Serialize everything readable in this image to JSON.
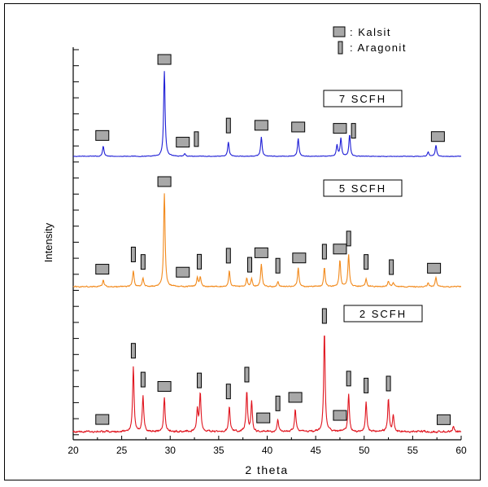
{
  "colors": {
    "7scfh": "#1f1fd6",
    "5scfh": "#f28a1c",
    "2scfh": "#e0141e",
    "marker_fill": "#a8a8a8",
    "axis": "#000000"
  },
  "chart_data": {
    "type": "line",
    "title": "",
    "xlabel": "2 theta",
    "ylabel": "Intensity",
    "xlim": [
      20,
      60
    ],
    "x_ticks": [
      "20",
      "25",
      "30",
      "35",
      "40",
      "45",
      "50",
      "55",
      "60"
    ],
    "legend": {
      "placement": "top-right",
      "entries": [
        {
          "symbol": "square",
          "label": ": Kalsit"
        },
        {
          "symbol": "bar",
          "label": ": Aragonit"
        }
      ]
    },
    "series": [
      {
        "name": "7 SCFH",
        "color": "#1f1fd6",
        "peaks": [
          {
            "x": 23.1,
            "h": 0.12
          },
          {
            "x": 29.4,
            "h": 1.0
          },
          {
            "x": 31.5,
            "h": 0.03
          },
          {
            "x": 36.0,
            "h": 0.17
          },
          {
            "x": 39.4,
            "h": 0.23
          },
          {
            "x": 43.2,
            "h": 0.21
          },
          {
            "x": 47.2,
            "h": 0.13
          },
          {
            "x": 47.6,
            "h": 0.21
          },
          {
            "x": 48.5,
            "h": 0.25
          },
          {
            "x": 56.6,
            "h": 0.05
          },
          {
            "x": 57.4,
            "h": 0.13
          }
        ],
        "markers": [
          {
            "type": "kalsit",
            "x": 23.0
          },
          {
            "type": "kalsit",
            "x": 29.4
          },
          {
            "type": "kalsit",
            "x": 31.3
          },
          {
            "type": "aragonit",
            "x": 32.7
          },
          {
            "type": "aragonit",
            "x": 36.0
          },
          {
            "type": "kalsit",
            "x": 39.4
          },
          {
            "type": "kalsit",
            "x": 43.2
          },
          {
            "type": "kalsit",
            "x": 47.5
          },
          {
            "type": "aragonit",
            "x": 48.9
          },
          {
            "type": "kalsit",
            "x": 57.6
          }
        ]
      },
      {
        "name": "5 SCFH",
        "color": "#f28a1c",
        "peaks": [
          {
            "x": 23.1,
            "h": 0.07
          },
          {
            "x": 26.2,
            "h": 0.17
          },
          {
            "x": 27.2,
            "h": 0.09
          },
          {
            "x": 29.4,
            "h": 1.0
          },
          {
            "x": 32.8,
            "h": 0.09
          },
          {
            "x": 33.1,
            "h": 0.1
          },
          {
            "x": 36.1,
            "h": 0.17
          },
          {
            "x": 37.9,
            "h": 0.09
          },
          {
            "x": 38.4,
            "h": 0.08
          },
          {
            "x": 39.4,
            "h": 0.24
          },
          {
            "x": 41.1,
            "h": 0.05
          },
          {
            "x": 43.2,
            "h": 0.2
          },
          {
            "x": 45.9,
            "h": 0.2
          },
          {
            "x": 47.5,
            "h": 0.28
          },
          {
            "x": 48.4,
            "h": 0.34
          },
          {
            "x": 50.2,
            "h": 0.09
          },
          {
            "x": 52.5,
            "h": 0.06
          },
          {
            "x": 53.0,
            "h": 0.04
          },
          {
            "x": 56.6,
            "h": 0.04
          },
          {
            "x": 57.4,
            "h": 0.1
          }
        ],
        "markers": [
          {
            "type": "kalsit",
            "x": 23.0
          },
          {
            "type": "aragonit",
            "x": 26.2
          },
          {
            "type": "aragonit",
            "x": 27.2
          },
          {
            "type": "kalsit",
            "x": 29.4
          },
          {
            "type": "kalsit",
            "x": 31.3
          },
          {
            "type": "aragonit",
            "x": 33.0
          },
          {
            "type": "aragonit",
            "x": 36.0
          },
          {
            "type": "aragonit",
            "x": 38.2
          },
          {
            "type": "kalsit",
            "x": 39.4
          },
          {
            "type": "aragonit",
            "x": 41.1
          },
          {
            "type": "kalsit",
            "x": 43.3
          },
          {
            "type": "aragonit",
            "x": 45.9
          },
          {
            "type": "kalsit",
            "x": 47.5
          },
          {
            "type": "aragonit",
            "x": 48.4
          },
          {
            "type": "aragonit",
            "x": 50.2
          },
          {
            "type": "aragonit",
            "x": 52.8
          },
          {
            "type": "kalsit",
            "x": 57.2
          }
        ]
      },
      {
        "name": "2 SCFH",
        "color": "#e0141e",
        "peaks": [
          {
            "x": 26.2,
            "h": 0.65
          },
          {
            "x": 27.2,
            "h": 0.36
          },
          {
            "x": 29.4,
            "h": 0.34
          },
          {
            "x": 32.8,
            "h": 0.22
          },
          {
            "x": 33.1,
            "h": 0.38
          },
          {
            "x": 36.1,
            "h": 0.26
          },
          {
            "x": 37.9,
            "h": 0.41
          },
          {
            "x": 38.4,
            "h": 0.3
          },
          {
            "x": 41.1,
            "h": 0.12
          },
          {
            "x": 42.9,
            "h": 0.23
          },
          {
            "x": 45.9,
            "h": 1.0
          },
          {
            "x": 48.4,
            "h": 0.37
          },
          {
            "x": 50.2,
            "h": 0.3
          },
          {
            "x": 52.5,
            "h": 0.32
          },
          {
            "x": 53.0,
            "h": 0.16
          },
          {
            "x": 59.2,
            "h": 0.05
          }
        ],
        "markers": [
          {
            "type": "kalsit",
            "x": 23.0
          },
          {
            "type": "aragonit",
            "x": 26.2
          },
          {
            "type": "aragonit",
            "x": 27.2
          },
          {
            "type": "kalsit",
            "x": 29.4
          },
          {
            "type": "aragonit",
            "x": 33.0
          },
          {
            "type": "aragonit",
            "x": 36.0
          },
          {
            "type": "aragonit",
            "x": 37.9
          },
          {
            "type": "kalsit",
            "x": 39.6
          },
          {
            "type": "aragonit",
            "x": 41.1
          },
          {
            "type": "kalsit",
            "x": 42.9
          },
          {
            "type": "aragonit",
            "x": 45.9
          },
          {
            "type": "kalsit",
            "x": 47.5
          },
          {
            "type": "aragonit",
            "x": 48.4
          },
          {
            "type": "aragonit",
            "x": 50.2
          },
          {
            "type": "aragonit",
            "x": 52.5
          },
          {
            "type": "kalsit",
            "x": 58.2
          }
        ]
      }
    ]
  }
}
